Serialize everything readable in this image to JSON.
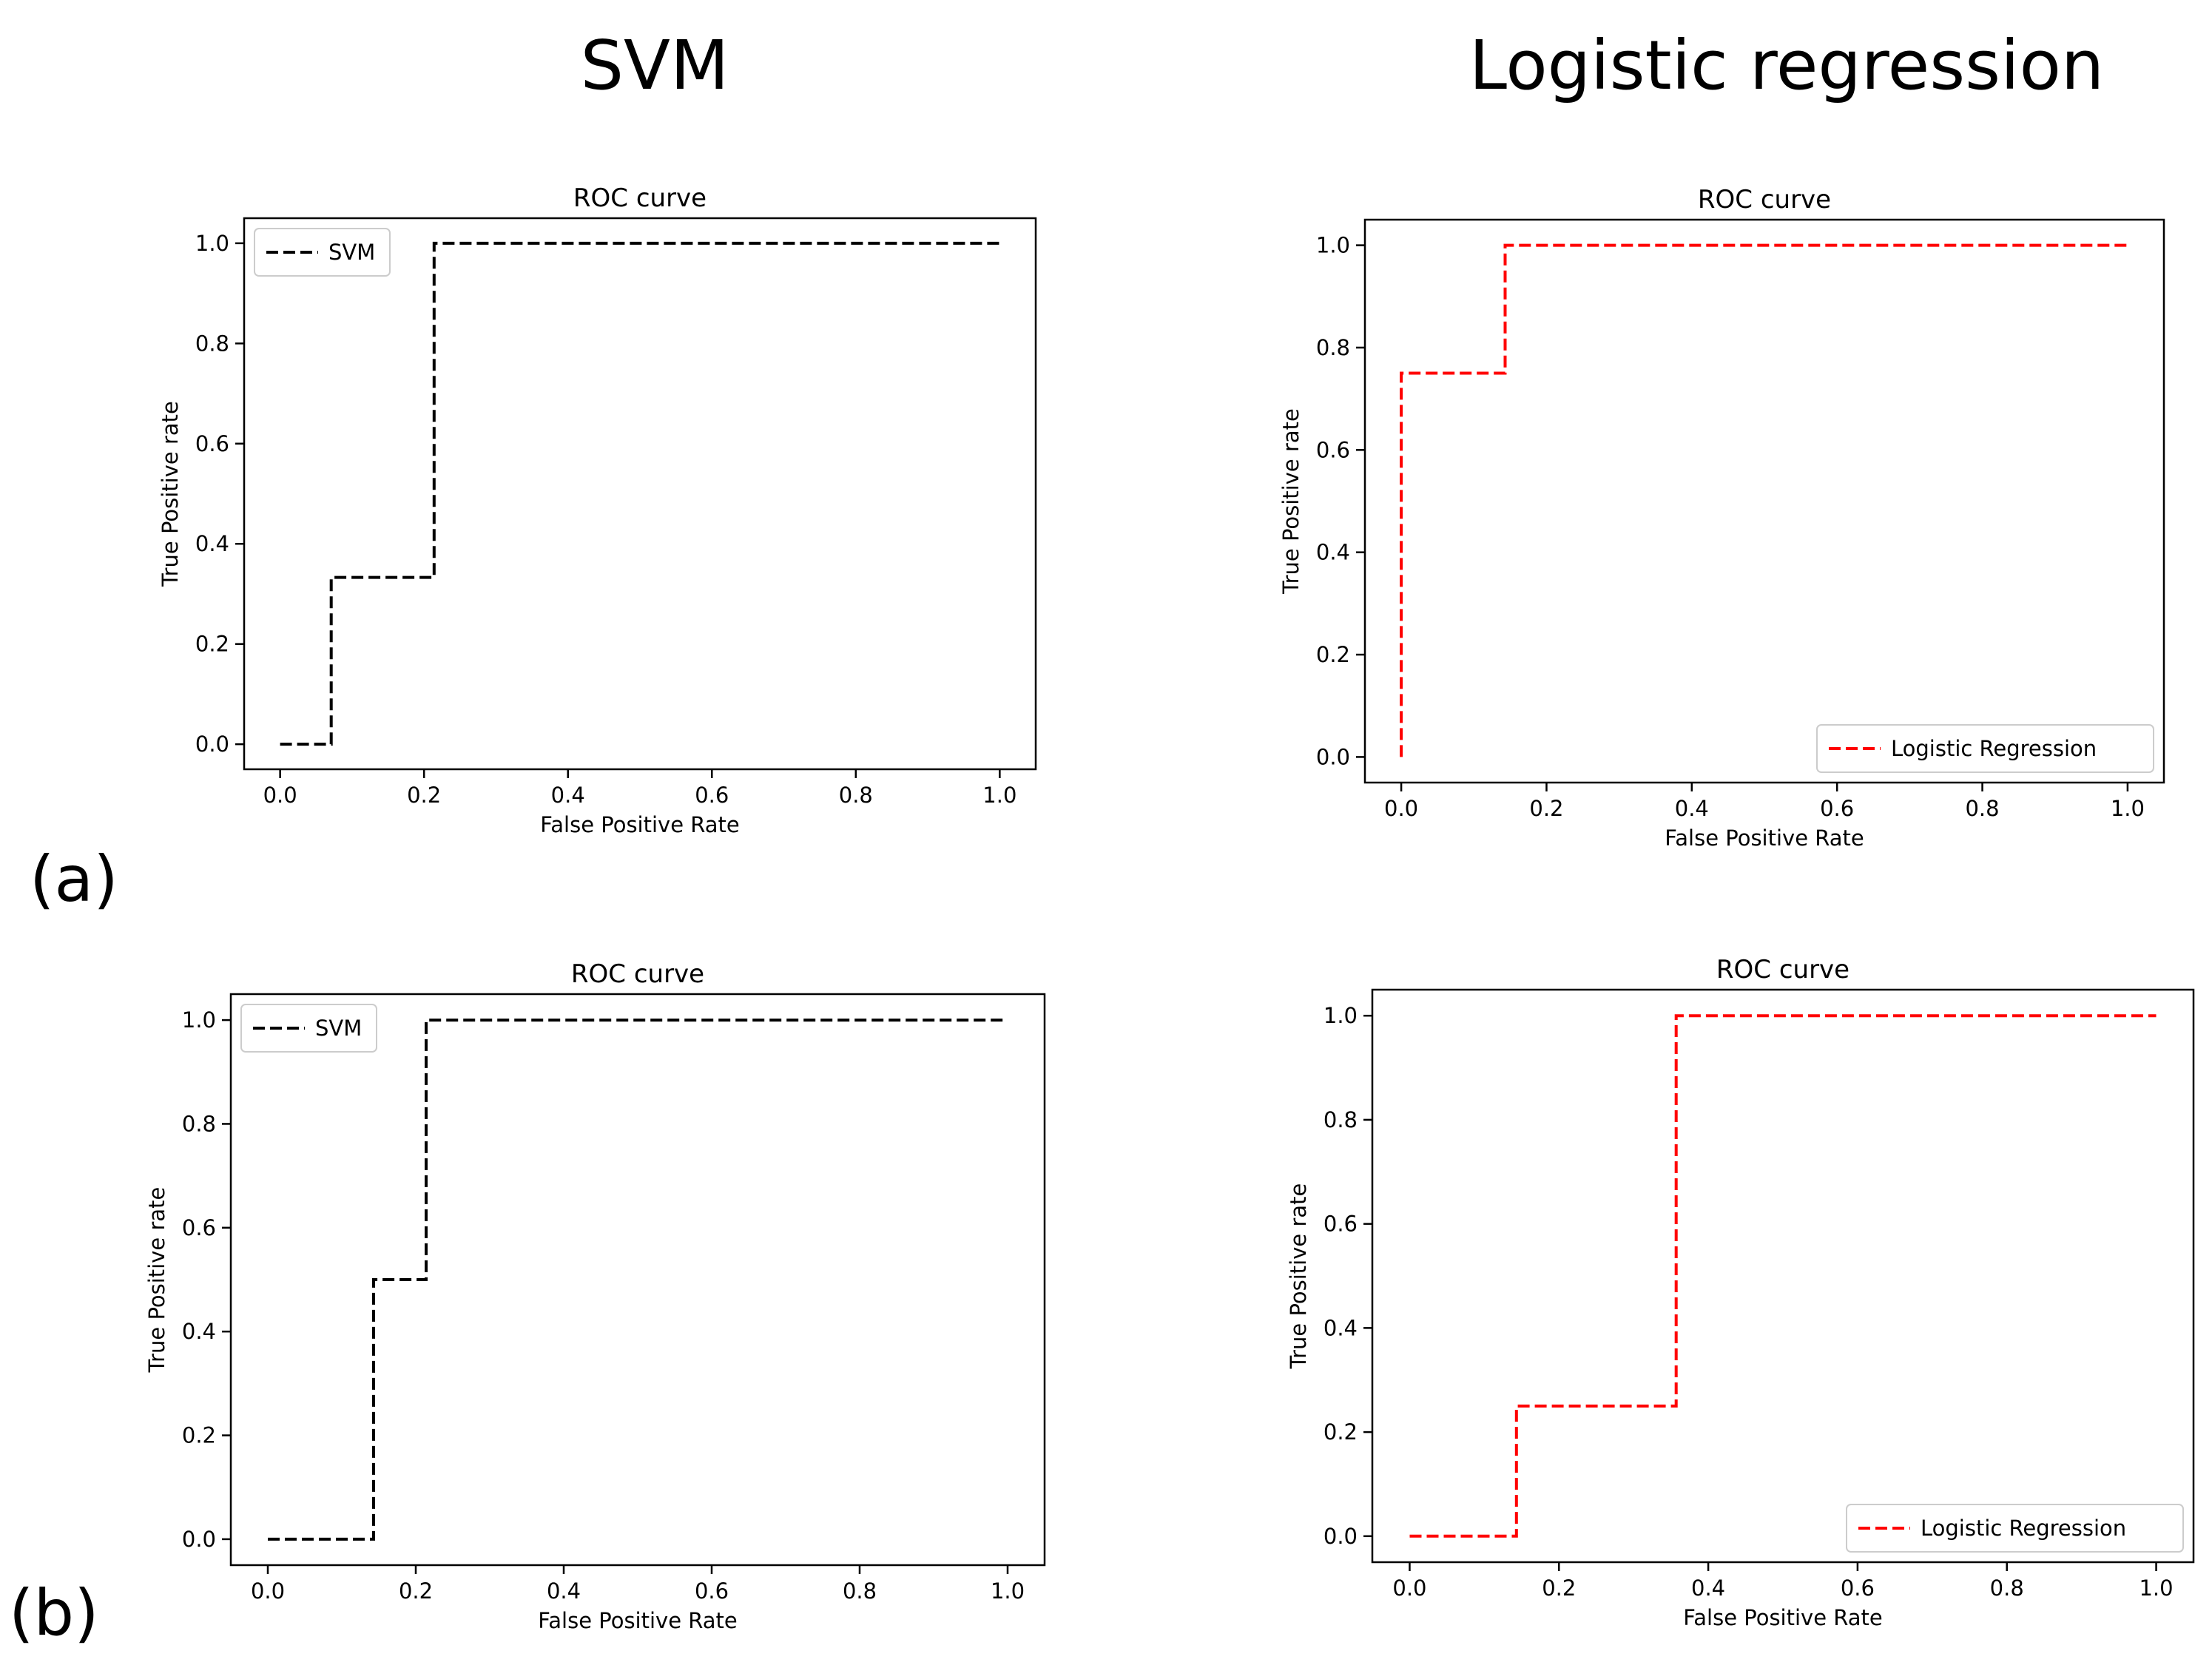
{
  "column_titles": {
    "left": "SVM",
    "right": "Logistic regression"
  },
  "row_labels": {
    "top": "(a)",
    "bottom": "(b)"
  },
  "colors": {
    "svm": "#000000",
    "logistic": "#ff0000"
  },
  "chart_data": [
    {
      "id": "a-svm",
      "type": "line",
      "title": "ROC curve",
      "xlabel": "False Positive Rate",
      "ylabel": "True Positive rate",
      "xlim": [
        -0.05,
        1.05
      ],
      "ylim": [
        -0.05,
        1.05
      ],
      "xticks": [
        "0.0",
        "0.2",
        "0.4",
        "0.6",
        "0.8",
        "1.0"
      ],
      "yticks": [
        "0.0",
        "0.2",
        "0.4",
        "0.6",
        "0.8",
        "1.0"
      ],
      "legend_position": "upper left",
      "series": [
        {
          "name": "SVM",
          "color": "#000000",
          "style": "dashed",
          "x": [
            0.0,
            0.071,
            0.071,
            0.214,
            0.214,
            1.0
          ],
          "y": [
            0.0,
            0.0,
            0.333,
            0.333,
            1.0,
            1.0
          ]
        }
      ]
    },
    {
      "id": "a-lr",
      "type": "line",
      "title": "ROC curve",
      "xlabel": "False Positive Rate",
      "ylabel": "True Positive rate",
      "xlim": [
        -0.05,
        1.05
      ],
      "ylim": [
        -0.05,
        1.05
      ],
      "xticks": [
        "0.0",
        "0.2",
        "0.4",
        "0.6",
        "0.8",
        "1.0"
      ],
      "yticks": [
        "0.0",
        "0.2",
        "0.4",
        "0.6",
        "0.8",
        "1.0"
      ],
      "legend_position": "lower right",
      "series": [
        {
          "name": "Logistic Regression",
          "color": "#ff0000",
          "style": "dashed",
          "x": [
            0.0,
            0.0,
            0.143,
            0.143,
            1.0
          ],
          "y": [
            0.0,
            0.75,
            0.75,
            1.0,
            1.0
          ]
        }
      ]
    },
    {
      "id": "b-svm",
      "type": "line",
      "title": "ROC curve",
      "xlabel": "False Positive Rate",
      "ylabel": "True Positive rate",
      "xlim": [
        -0.05,
        1.05
      ],
      "ylim": [
        -0.05,
        1.05
      ],
      "xticks": [
        "0.0",
        "0.2",
        "0.4",
        "0.6",
        "0.8",
        "1.0"
      ],
      "yticks": [
        "0.0",
        "0.2",
        "0.4",
        "0.6",
        "0.8",
        "1.0"
      ],
      "legend_position": "upper left",
      "series": [
        {
          "name": "SVM",
          "color": "#000000",
          "style": "dashed",
          "x": [
            0.0,
            0.143,
            0.143,
            0.214,
            0.214,
            1.0
          ],
          "y": [
            0.0,
            0.0,
            0.5,
            0.5,
            1.0,
            1.0
          ]
        }
      ]
    },
    {
      "id": "b-lr",
      "type": "line",
      "title": "ROC curve",
      "xlabel": "False Positive Rate",
      "ylabel": "True Positive rate",
      "xlim": [
        -0.05,
        1.05
      ],
      "ylim": [
        -0.05,
        1.05
      ],
      "xticks": [
        "0.0",
        "0.2",
        "0.4",
        "0.6",
        "0.8",
        "1.0"
      ],
      "yticks": [
        "0.0",
        "0.2",
        "0.4",
        "0.6",
        "0.8",
        "1.0"
      ],
      "legend_position": "lower right",
      "series": [
        {
          "name": "Logistic Regression",
          "color": "#ff0000",
          "style": "dashed",
          "x": [
            0.0,
            0.143,
            0.143,
            0.357,
            0.357,
            1.0
          ],
          "y": [
            0.0,
            0.0,
            0.25,
            0.25,
            1.0,
            1.0
          ]
        }
      ]
    }
  ]
}
